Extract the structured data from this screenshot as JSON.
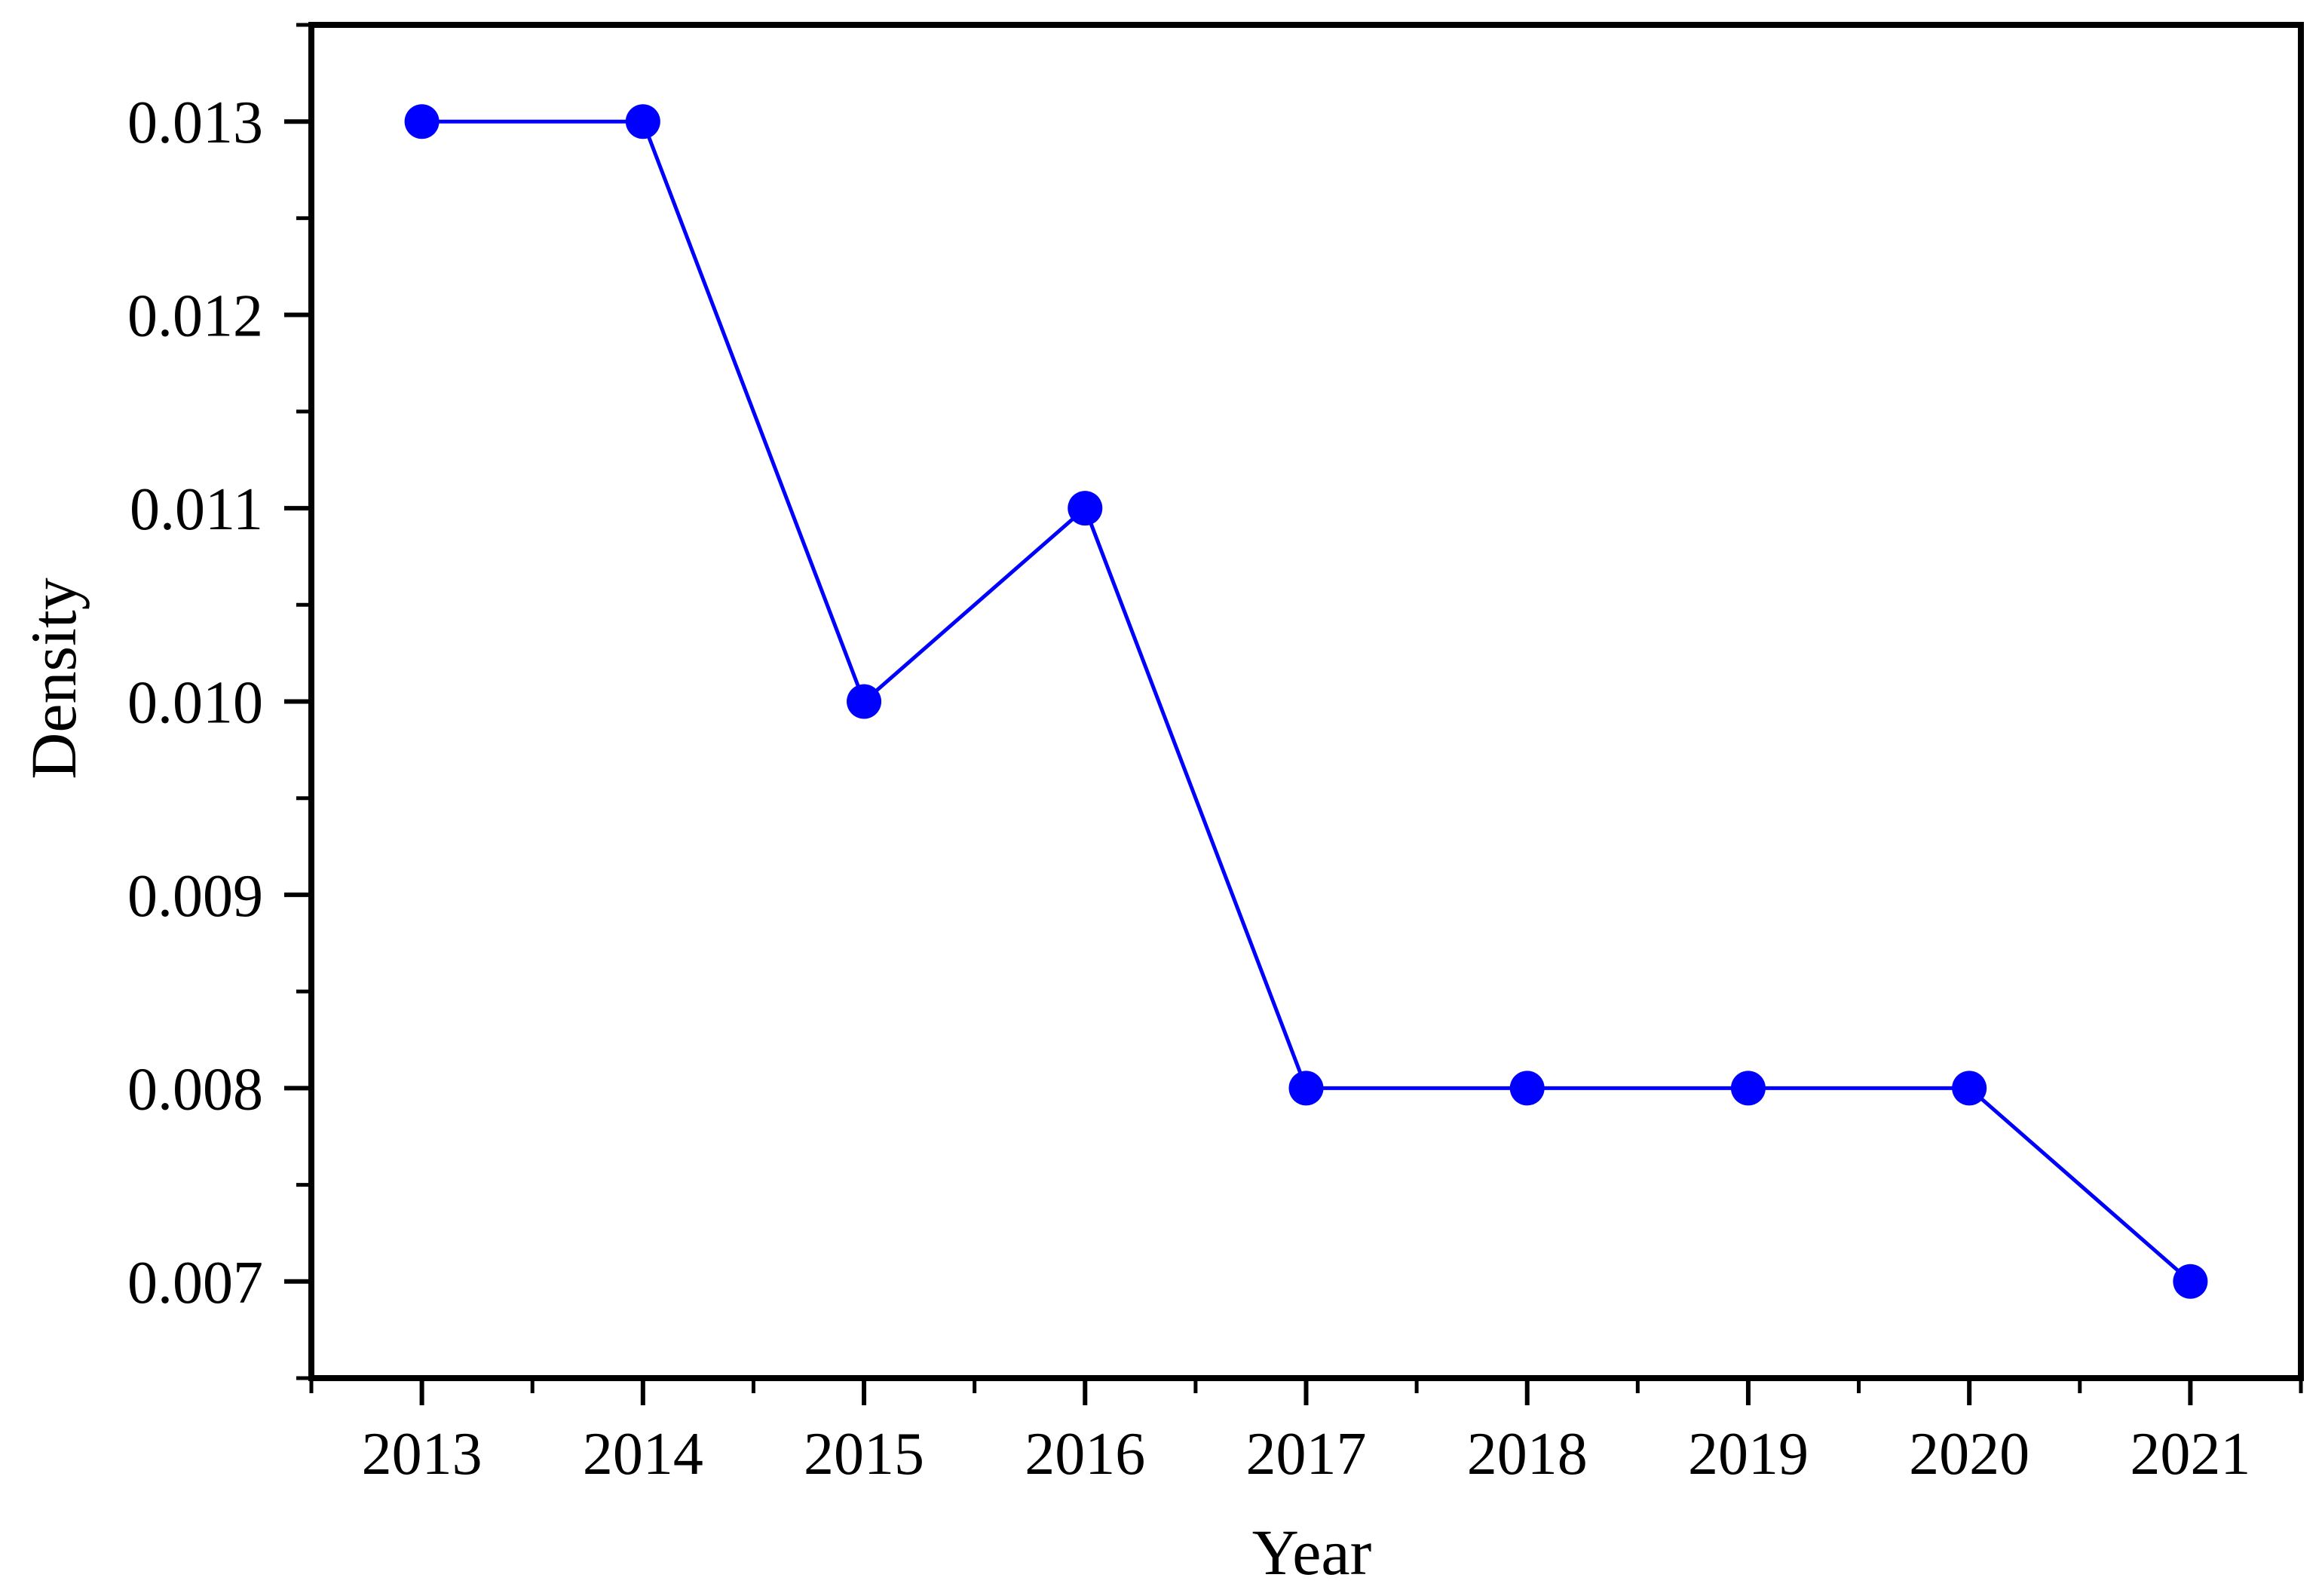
{
  "chart_data": {
    "type": "line",
    "title": "",
    "xlabel": "Year",
    "ylabel": "Density",
    "x": [
      2013,
      2014,
      2015,
      2016,
      2017,
      2018,
      2019,
      2020,
      2021
    ],
    "values": [
      0.013,
      0.013,
      0.01,
      0.011,
      0.008,
      0.008,
      0.008,
      0.008,
      0.007
    ],
    "xlim": [
      2012.5,
      2021.5
    ],
    "ylim": [
      0.0065,
      0.0135
    ],
    "x_major_ticks": [
      2013,
      2014,
      2015,
      2016,
      2017,
      2018,
      2019,
      2020,
      2021
    ],
    "x_tick_labels": [
      "2013",
      "2014",
      "2015",
      "2016",
      "2017",
      "2018",
      "2019",
      "2020",
      "2021"
    ],
    "x_minor_step": 0.5,
    "y_major_ticks": [
      0.007,
      0.008,
      0.009,
      0.01,
      0.011,
      0.012,
      0.013
    ],
    "y_tick_labels": [
      "0.007",
      "0.008",
      "0.009",
      "0.010",
      "0.011",
      "0.012",
      "0.013"
    ],
    "y_minor_step": 0.0005,
    "grid": false,
    "legend_position": "none",
    "line_color": "#0000FF",
    "marker": "circle-filled",
    "marker_color": "#0000FF",
    "axis_color": "#000000",
    "background_color": "#FFFFFF"
  }
}
